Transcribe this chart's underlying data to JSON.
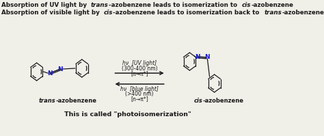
{
  "bg_color": "#f0efe8",
  "text_color": "#1a1a1a",
  "N_color": "#1a1acc",
  "bond_color": "#1a1a1a",
  "arrow_color": "#1a1a1a",
  "line1_parts": [
    [
      "Absorption of UV light by ",
      true,
      false
    ],
    [
      "trans",
      true,
      true
    ],
    [
      "-azobenzene leads to isomerization to ",
      true,
      false
    ],
    [
      "cis",
      true,
      true
    ],
    [
      "-azobenzene",
      true,
      false
    ]
  ],
  "line2_parts": [
    [
      "Absorption of visible light by ",
      true,
      false
    ],
    [
      "cis",
      true,
      true
    ],
    [
      "-azobenzene leads to isomerization back to ",
      true,
      false
    ],
    [
      "trans",
      true,
      true
    ],
    [
      "-azobenzene",
      true,
      false
    ]
  ],
  "arrow1_line1": "hν  [UV light]",
  "arrow1_line2": "(300-400 nm)",
  "arrow1_line3": "[π→π*]",
  "arrow2_line1": "hν  [blue light]",
  "arrow2_line2": "(>400 nm)",
  "arrow2_line3": "[n→π*]",
  "trans_label_italic": "trans",
  "trans_label_normal": "-azobenzene",
  "cis_label_italic": "cis",
  "cis_label_normal": "-azobenzene",
  "bottom_bold": "This is called ",
  "bottom_normal": "\"photoisomerization\""
}
